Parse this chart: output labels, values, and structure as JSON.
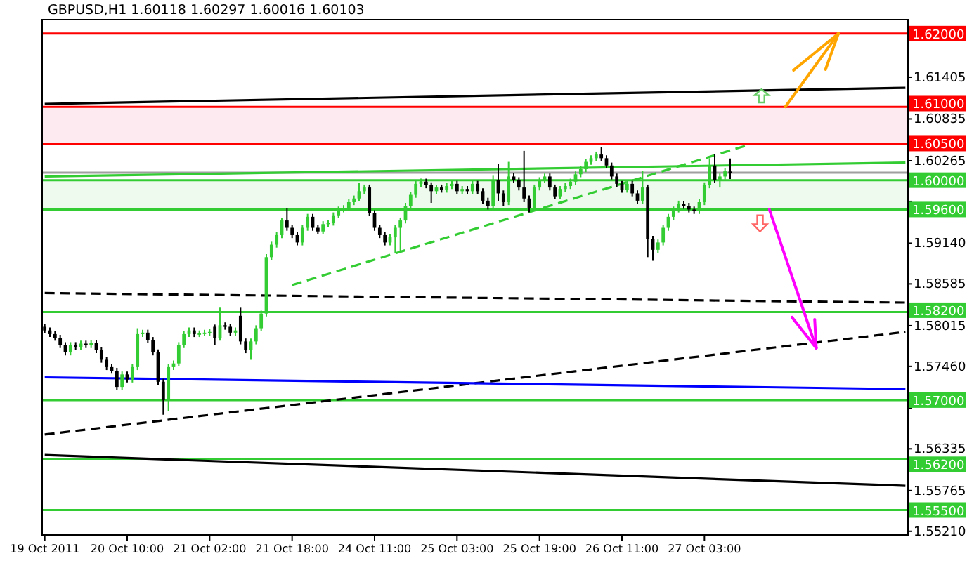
{
  "chart_data": {
    "type": "candlestick",
    "title": "GBPUSD,H1 1.60118 1.60297 1.60016 1.60103",
    "categories": [
      "19 Oct 2011",
      null,
      null,
      null,
      null,
      null,
      null,
      null,
      null,
      null,
      null,
      null,
      null,
      null,
      null,
      null,
      "20 Oct 10:00",
      null,
      null,
      null,
      null,
      null,
      null,
      null,
      null,
      null,
      null,
      null,
      null,
      null,
      null,
      null,
      "21 Oct 02:00",
      null,
      null,
      null,
      null,
      null,
      null,
      null,
      null,
      null,
      null,
      null,
      null,
      null,
      null,
      null,
      "21 Oct 18:00",
      null,
      null,
      null,
      null,
      null,
      null,
      null,
      null,
      null,
      null,
      null,
      null,
      null,
      null,
      null,
      "24 Oct 11:00",
      null,
      null,
      null,
      null,
      null,
      null,
      null,
      null,
      null,
      null,
      null,
      null,
      null,
      null,
      null,
      "25 Oct 03:00",
      null,
      null,
      null,
      null,
      null,
      null,
      null,
      null,
      null,
      null,
      null,
      null,
      null,
      null,
      null,
      "25 Oct 19:00",
      null,
      null,
      null,
      null,
      null,
      null,
      null,
      null,
      null,
      null,
      null,
      null,
      null,
      null,
      null,
      "26 Oct 11:00",
      null,
      null,
      null,
      null,
      null,
      null,
      null,
      null,
      null,
      null,
      null,
      null,
      null,
      null,
      null,
      "27 Oct 03:00",
      null,
      null,
      null,
      null,
      null,
      null,
      null,
      null,
      null,
      null,
      null,
      null,
      null,
      null,
      null,
      null,
      null,
      null,
      null,
      null,
      null,
      null,
      null,
      null,
      null,
      null,
      null,
      null,
      null,
      null,
      null,
      null,
      null,
      null,
      null,
      null,
      null,
      null,
      null
    ],
    "ohlc": [
      [
        1.58,
        1.5804,
        1.5791,
        1.5795
      ],
      [
        1.5795,
        1.5799,
        1.5786,
        1.579
      ],
      [
        1.579,
        1.5794,
        1.5781,
        1.5785
      ],
      [
        1.5785,
        1.5789,
        1.5771,
        1.5775
      ],
      [
        1.5775,
        1.5779,
        1.5761,
        1.5765
      ],
      [
        1.5765,
        1.5779,
        1.5761,
        1.5775
      ],
      [
        1.5775,
        1.5779,
        1.5768,
        1.5772
      ],
      [
        1.5772,
        1.5781,
        1.5768,
        1.5777
      ],
      [
        1.5777,
        1.5781,
        1.5771,
        1.5775
      ],
      [
        1.5775,
        1.5782,
        1.5771,
        1.5778
      ],
      [
        1.5778,
        1.5782,
        1.5764,
        1.5768
      ],
      [
        1.5768,
        1.5772,
        1.5751,
        1.5755
      ],
      [
        1.5755,
        1.5759,
        1.5741,
        1.5745
      ],
      [
        1.5745,
        1.5749,
        1.5736,
        1.574
      ],
      [
        1.574,
        1.5744,
        1.5714,
        1.5718
      ],
      [
        1.5718,
        1.5739,
        1.5714,
        1.5735
      ],
      [
        1.5735,
        1.5739,
        1.5724,
        1.5728
      ],
      [
        1.5728,
        1.5749,
        1.5724,
        1.5745
      ],
      [
        1.5745,
        1.5798,
        1.5741,
        1.579
      ],
      [
        1.579,
        1.5796,
        1.5786,
        1.5792
      ],
      [
        1.5792,
        1.5796,
        1.5778,
        1.5782
      ],
      [
        1.5782,
        1.5786,
        1.5761,
        1.5765
      ],
      [
        1.5765,
        1.5769,
        1.5721,
        1.5725
      ],
      [
        1.5725,
        1.5729,
        1.568,
        1.57
      ],
      [
        1.57,
        1.5749,
        1.5685,
        1.5745
      ],
      [
        1.5745,
        1.5754,
        1.5741,
        1.575
      ],
      [
        1.575,
        1.5779,
        1.5746,
        1.5775
      ],
      [
        1.5775,
        1.5794,
        1.5771,
        1.579
      ],
      [
        1.579,
        1.5799,
        1.5786,
        1.5795
      ],
      [
        1.5795,
        1.5799,
        1.5786,
        1.579
      ],
      [
        1.579,
        1.5795,
        1.5786,
        1.5791
      ],
      [
        1.5791,
        1.5796,
        1.5787,
        1.5792
      ],
      [
        1.5792,
        1.5797,
        1.5788,
        1.5793
      ],
      [
        1.58,
        1.5803,
        1.5775,
        1.5785
      ],
      [
        1.5785,
        1.5826,
        1.5781,
        1.5802
      ],
      [
        1.5802,
        1.5806,
        1.5796,
        1.58
      ],
      [
        1.58,
        1.5804,
        1.5788,
        1.5792
      ],
      [
        1.5792,
        1.5799,
        1.5788,
        1.5795
      ],
      [
        1.5815,
        1.5826,
        1.5776,
        1.578
      ],
      [
        1.578,
        1.5784,
        1.5764,
        1.5768
      ],
      [
        1.5768,
        1.5784,
        1.5755,
        1.578
      ],
      [
        1.578,
        1.5802,
        1.5776,
        1.5798
      ],
      [
        1.5798,
        1.5822,
        1.5794,
        1.5818
      ],
      [
        1.5818,
        1.5899,
        1.5814,
        1.5895
      ],
      [
        1.5895,
        1.5916,
        1.5891,
        1.5912
      ],
      [
        1.5912,
        1.5929,
        1.5908,
        1.5925
      ],
      [
        1.5925,
        1.5949,
        1.5921,
        1.5945
      ],
      [
        1.5945,
        1.5962,
        1.5931,
        1.5935
      ],
      [
        1.5935,
        1.5939,
        1.5921,
        1.5925
      ],
      [
        1.5925,
        1.5929,
        1.5911,
        1.5915
      ],
      [
        1.5915,
        1.5939,
        1.5911,
        1.5935
      ],
      [
        1.5935,
        1.5954,
        1.5931,
        1.595
      ],
      [
        1.595,
        1.5954,
        1.5931,
        1.5935
      ],
      [
        1.5935,
        1.5939,
        1.5926,
        1.593
      ],
      [
        1.593,
        1.5944,
        1.5926,
        1.594
      ],
      [
        1.594,
        1.5946,
        1.5936,
        1.5942
      ],
      [
        1.5942,
        1.5956,
        1.5938,
        1.5952
      ],
      [
        1.5952,
        1.5964,
        1.5948,
        1.596
      ],
      [
        1.596,
        1.5966,
        1.5956,
        1.5962
      ],
      [
        1.5962,
        1.5974,
        1.5958,
        1.597
      ],
      [
        1.597,
        1.5979,
        1.5966,
        1.5975
      ],
      [
        1.5975,
        1.5996,
        1.5971,
        1.5985
      ],
      [
        1.5985,
        1.5994,
        1.5981,
        1.599
      ],
      [
        1.599,
        1.5994,
        1.5951,
        1.5955
      ],
      [
        1.5955,
        1.5959,
        1.5931,
        1.5935
      ],
      [
        1.5935,
        1.5939,
        1.5921,
        1.5925
      ],
      [
        1.5925,
        1.5929,
        1.5911,
        1.5915
      ],
      [
        1.5915,
        1.5926,
        1.5911,
        1.5922
      ],
      [
        1.5922,
        1.5939,
        1.59,
        1.5935
      ],
      [
        1.5935,
        1.5949,
        1.5902,
        1.5945
      ],
      [
        1.5945,
        1.5969,
        1.5941,
        1.5965
      ],
      [
        1.5965,
        1.5984,
        1.5961,
        1.598
      ],
      [
        1.598,
        1.5999,
        1.5976,
        1.5995
      ],
      [
        1.5995,
        1.6002,
        1.5991,
        1.5998
      ],
      [
        1.5998,
        1.6002,
        1.5989,
        1.5993
      ],
      [
        1.5993,
        1.5997,
        1.5969,
        1.5985
      ],
      [
        1.5985,
        1.5994,
        1.5981,
        1.599
      ],
      [
        1.599,
        1.5994,
        1.5983,
        1.5987
      ],
      [
        1.5987,
        1.5996,
        1.5983,
        1.5992
      ],
      [
        1.5992,
        1.5999,
        1.5988,
        1.5995
      ],
      [
        1.5995,
        1.5999,
        1.5981,
        1.5985
      ],
      [
        1.5985,
        1.5992,
        1.5981,
        1.5988
      ],
      [
        1.5988,
        1.5992,
        1.5981,
        1.5985
      ],
      [
        1.5985,
        1.5999,
        1.5981,
        1.5995
      ],
      [
        1.5995,
        1.5999,
        1.5981,
        1.5985
      ],
      [
        1.5985,
        1.5989,
        1.5968,
        1.5972
      ],
      [
        1.5972,
        1.5976,
        1.596,
        1.5965
      ],
      [
        1.5965,
        1.6006,
        1.5961,
        1.6
      ],
      [
        1.6,
        1.6022,
        1.5972,
        1.5982
      ],
      [
        1.5982,
        1.5986,
        1.5965,
        1.597
      ],
      [
        1.597,
        1.6025,
        1.5966,
        1.6005
      ],
      [
        1.6005,
        1.601,
        1.5996,
        1.6
      ],
      [
        1.6,
        1.6004,
        1.5986,
        1.599
      ],
      [
        1.599,
        1.604,
        1.597,
        1.5975
      ],
      [
        1.5975,
        1.5979,
        1.5956,
        1.5962
      ],
      [
        1.5962,
        1.5994,
        1.5958,
        1.599
      ],
      [
        1.599,
        1.6004,
        1.5986,
        1.6
      ],
      [
        1.6,
        1.6009,
        1.5996,
        1.6005
      ],
      [
        1.6005,
        1.6009,
        1.5986,
        1.599
      ],
      [
        1.599,
        1.5994,
        1.5974,
        1.5978
      ],
      [
        1.5978,
        1.5992,
        1.5974,
        1.5988
      ],
      [
        1.5988,
        1.5996,
        1.5984,
        1.5992
      ],
      [
        1.5992,
        1.6002,
        1.5988,
        1.5998
      ],
      [
        1.5998,
        1.6012,
        1.5994,
        1.6008
      ],
      [
        1.6008,
        1.6019,
        1.6004,
        1.6015
      ],
      [
        1.6015,
        1.6029,
        1.6011,
        1.6025
      ],
      [
        1.6025,
        1.6034,
        1.6021,
        1.603
      ],
      [
        1.603,
        1.6039,
        1.6026,
        1.6035
      ],
      [
        1.6035,
        1.6045,
        1.6026,
        1.603
      ],
      [
        1.603,
        1.6034,
        1.6016,
        1.602
      ],
      [
        1.602,
        1.6024,
        1.6001,
        1.6005
      ],
      [
        1.6005,
        1.6009,
        1.5991,
        1.5995
      ],
      [
        1.5995,
        1.5999,
        1.5983,
        1.5987
      ],
      [
        1.5987,
        1.5999,
        1.5983,
        1.5995
      ],
      [
        1.5995,
        1.5999,
        1.5978,
        1.5982
      ],
      [
        1.5982,
        1.5986,
        1.5968,
        1.5972
      ],
      [
        1.5972,
        1.6013,
        1.5968,
        1.599
      ],
      [
        1.599,
        1.5994,
        1.5895,
        1.592
      ],
      [
        1.592,
        1.5924,
        1.589,
        1.5905
      ],
      [
        1.5905,
        1.5919,
        1.5901,
        1.5915
      ],
      [
        1.5915,
        1.5939,
        1.5911,
        1.5935
      ],
      [
        1.5935,
        1.5954,
        1.5931,
        1.595
      ],
      [
        1.595,
        1.5964,
        1.5946,
        1.596
      ],
      [
        1.596,
        1.5972,
        1.5956,
        1.5968
      ],
      [
        1.5968,
        1.5972,
        1.5961,
        1.5965
      ],
      [
        1.5965,
        1.5969,
        1.5956,
        1.596
      ],
      [
        1.596,
        1.5964,
        1.5954,
        1.5958
      ],
      [
        1.5958,
        1.5974,
        1.5954,
        1.597
      ],
      [
        1.597,
        1.5997,
        1.5966,
        1.5993
      ],
      [
        1.5993,
        1.603,
        1.5989,
        1.602
      ],
      [
        1.602,
        1.6036,
        1.5996,
        1.6
      ],
      [
        1.6,
        1.6009,
        1.599,
        1.6005
      ],
      [
        1.6005,
        1.6016,
        1.6001,
        1.6012
      ],
      [
        1.60118,
        1.60297,
        1.60016,
        1.60103
      ],
      null,
      null,
      null,
      null,
      null,
      null,
      null,
      null,
      null,
      null,
      null,
      null,
      null,
      null,
      null,
      null,
      null,
      null,
      null,
      null,
      null,
      null,
      null,
      null,
      null,
      null,
      null,
      null,
      null,
      null,
      null,
      null,
      null,
      null
    ],
    "ylim": [
      1.5516,
      1.6219
    ],
    "yticks": [
      1.61405,
      1.60835,
      1.60265,
      {
        "value": 1.5971,
        "label": null
      },
      {
        "value": 1.5914,
        "label": "1.59140"
      },
      1.58585,
      1.58015,
      {
        "value": 1.5746,
        "label": "1.57460"
      },
      {
        "value": 1.5689,
        "label": null
      },
      1.56335,
      1.55765,
      {
        "value": 1.5521,
        "label": "1.55210"
      }
    ],
    "series": [
      {
        "type": "line",
        "color": "#000000",
        "line_style": "solid",
        "values": [
          1.6104,
          null,
          null,
          null,
          null,
          null,
          null,
          null,
          null,
          null,
          null,
          null,
          null,
          null,
          null,
          null,
          null,
          null,
          null,
          null,
          null,
          null,
          null,
          null,
          null,
          null,
          null,
          null,
          null,
          null,
          null,
          null,
          null,
          null,
          null,
          null,
          null,
          null,
          null,
          null,
          null,
          null,
          null,
          null,
          null,
          null,
          null,
          null,
          null,
          null,
          null,
          null,
          null,
          null,
          null,
          null,
          null,
          null,
          null,
          null,
          null,
          null,
          null,
          null,
          null,
          null,
          null,
          null,
          null,
          null,
          null,
          null,
          null,
          null,
          null,
          null,
          null,
          null,
          null,
          null,
          null,
          null,
          null,
          null,
          null,
          null,
          null,
          null,
          null,
          null,
          null,
          null,
          null,
          null,
          null,
          null,
          null,
          null,
          null,
          null,
          null,
          null,
          null,
          null,
          null,
          null,
          null,
          null,
          null,
          null,
          null,
          null,
          null,
          null,
          null,
          null,
          null,
          null,
          null,
          null,
          null,
          null,
          null,
          null,
          null,
          null,
          null,
          null,
          null,
          null,
          null,
          null,
          null,
          null,
          null,
          null,
          null,
          null,
          null,
          null,
          null,
          null,
          null,
          null,
          null,
          null,
          null,
          null,
          null,
          null,
          null,
          null,
          null,
          null,
          null,
          null,
          null,
          null,
          null,
          null,
          null,
          null,
          null,
          null,
          null,
          null,
          null,
          1.6126
        ]
      },
      {
        "type": "line",
        "color": "#33cc33",
        "line_style": "solid",
        "values": [
          1.6005,
          null,
          null,
          null,
          null,
          null,
          null,
          null,
          null,
          null,
          null,
          null,
          null,
          null,
          null,
          null,
          null,
          null,
          null,
          null,
          null,
          null,
          null,
          null,
          null,
          null,
          null,
          null,
          null,
          null,
          null,
          null,
          null,
          null,
          null,
          null,
          null,
          null,
          null,
          null,
          null,
          null,
          null,
          null,
          null,
          null,
          null,
          null,
          null,
          null,
          null,
          null,
          null,
          null,
          null,
          null,
          null,
          null,
          null,
          null,
          null,
          null,
          null,
          null,
          null,
          null,
          null,
          null,
          null,
          null,
          null,
          null,
          null,
          null,
          null,
          null,
          null,
          null,
          null,
          null,
          null,
          null,
          null,
          null,
          null,
          null,
          null,
          null,
          null,
          null,
          null,
          null,
          null,
          null,
          null,
          null,
          null,
          null,
          null,
          null,
          null,
          null,
          null,
          null,
          null,
          null,
          null,
          null,
          null,
          null,
          null,
          null,
          null,
          null,
          null,
          null,
          null,
          null,
          null,
          null,
          null,
          null,
          null,
          null,
          null,
          null,
          null,
          null,
          null,
          null,
          null,
          null,
          null,
          null,
          null,
          null,
          null,
          null,
          null,
          null,
          null,
          null,
          null,
          null,
          null,
          null,
          null,
          null,
          null,
          null,
          null,
          null,
          null,
          null,
          null,
          null,
          null,
          null,
          null,
          null,
          null,
          null,
          null,
          null,
          null,
          null,
          null,
          1.6024
        ]
      },
      {
        "type": "line",
        "color": "#33cc33",
        "line_style": "dashed",
        "values": [
          null,
          null,
          null,
          null,
          null,
          null,
          null,
          null,
          null,
          null,
          null,
          null,
          null,
          null,
          null,
          null,
          null,
          null,
          null,
          null,
          null,
          null,
          null,
          null,
          null,
          null,
          null,
          null,
          null,
          null,
          null,
          null,
          null,
          null,
          null,
          null,
          null,
          null,
          null,
          null,
          null,
          null,
          null,
          null,
          null,
          null,
          null,
          null,
          1.5857,
          null,
          null,
          null,
          null,
          null,
          null,
          null,
          null,
          null,
          null,
          null,
          null,
          null,
          null,
          null,
          null,
          null,
          null,
          null,
          null,
          null,
          null,
          null,
          null,
          null,
          null,
          null,
          null,
          null,
          null,
          null,
          null,
          null,
          null,
          null,
          null,
          null,
          null,
          null,
          null,
          null,
          null,
          null,
          null,
          null,
          null,
          null,
          null,
          null,
          null,
          null,
          null,
          null,
          null,
          null,
          null,
          null,
          null,
          null,
          null,
          null,
          null,
          null,
          null,
          null,
          null,
          null,
          null,
          null,
          null,
          null,
          null,
          null,
          null,
          null,
          null,
          null,
          null,
          null,
          null,
          null,
          null,
          null,
          null,
          null,
          null,
          null,
          1.6047,
          null,
          null,
          null,
          null,
          null,
          null,
          null,
          null,
          null,
          null,
          null,
          null,
          null,
          null,
          null,
          null,
          null,
          null,
          null,
          null,
          null,
          null,
          null,
          null,
          null,
          null,
          null,
          null,
          null,
          null,
          null
        ]
      },
      {
        "type": "line",
        "color": "#000000",
        "line_style": "dashed",
        "values": [
          1.5846,
          null,
          null,
          null,
          null,
          null,
          null,
          null,
          null,
          null,
          null,
          null,
          null,
          null,
          null,
          null,
          null,
          null,
          null,
          null,
          null,
          null,
          null,
          null,
          null,
          null,
          null,
          null,
          null,
          null,
          null,
          null,
          null,
          null,
          null,
          null,
          null,
          null,
          null,
          null,
          null,
          null,
          null,
          null,
          null,
          null,
          null,
          null,
          null,
          null,
          null,
          null,
          null,
          null,
          null,
          null,
          null,
          null,
          null,
          null,
          null,
          null,
          null,
          null,
          null,
          null,
          null,
          null,
          null,
          null,
          null,
          null,
          null,
          null,
          null,
          null,
          null,
          null,
          null,
          null,
          null,
          null,
          null,
          null,
          null,
          null,
          null,
          null,
          null,
          null,
          null,
          null,
          null,
          null,
          null,
          null,
          null,
          null,
          null,
          null,
          null,
          null,
          null,
          null,
          null,
          null,
          null,
          null,
          null,
          null,
          null,
          null,
          null,
          null,
          null,
          null,
          null,
          null,
          null,
          null,
          null,
          null,
          null,
          null,
          null,
          null,
          null,
          null,
          null,
          null,
          null,
          null,
          null,
          null,
          null,
          null,
          null,
          null,
          null,
          null,
          null,
          null,
          null,
          null,
          null,
          null,
          null,
          null,
          null,
          null,
          null,
          null,
          null,
          null,
          null,
          null,
          null,
          null,
          null,
          null,
          null,
          null,
          null,
          null,
          null,
          null,
          null,
          1.5833
        ]
      },
      {
        "type": "line",
        "color": "#000000",
        "line_style": "dashed",
        "values": [
          1.5653,
          null,
          null,
          null,
          null,
          null,
          null,
          null,
          null,
          null,
          null,
          null,
          null,
          null,
          null,
          null,
          null,
          null,
          null,
          null,
          null,
          null,
          null,
          null,
          null,
          null,
          null,
          null,
          null,
          null,
          null,
          null,
          null,
          null,
          null,
          null,
          null,
          null,
          null,
          null,
          null,
          null,
          null,
          null,
          null,
          null,
          null,
          null,
          null,
          null,
          null,
          null,
          null,
          null,
          null,
          null,
          null,
          null,
          null,
          null,
          null,
          null,
          null,
          null,
          null,
          null,
          null,
          null,
          null,
          null,
          null,
          null,
          null,
          null,
          null,
          null,
          null,
          null,
          null,
          null,
          null,
          null,
          null,
          null,
          null,
          null,
          null,
          null,
          null,
          null,
          null,
          null,
          null,
          null,
          null,
          null,
          null,
          null,
          null,
          null,
          null,
          null,
          null,
          null,
          null,
          null,
          null,
          null,
          null,
          null,
          null,
          null,
          null,
          null,
          null,
          null,
          null,
          null,
          null,
          null,
          null,
          null,
          null,
          null,
          null,
          null,
          null,
          null,
          null,
          null,
          null,
          null,
          null,
          null,
          null,
          null,
          null,
          null,
          null,
          null,
          null,
          null,
          null,
          null,
          null,
          null,
          null,
          null,
          null,
          null,
          null,
          null,
          null,
          null,
          null,
          null,
          null,
          null,
          null,
          null,
          null,
          null,
          null,
          null,
          null,
          null,
          null,
          1.5793
        ]
      },
      {
        "type": "line",
        "color": "#000000",
        "line_style": "solid",
        "values": [
          1.5625,
          null,
          null,
          null,
          null,
          null,
          null,
          null,
          null,
          null,
          null,
          null,
          null,
          null,
          null,
          null,
          null,
          null,
          null,
          null,
          null,
          null,
          null,
          null,
          null,
          null,
          null,
          null,
          null,
          null,
          null,
          null,
          null,
          null,
          null,
          null,
          null,
          null,
          null,
          null,
          null,
          null,
          null,
          null,
          null,
          null,
          null,
          null,
          null,
          null,
          null,
          null,
          null,
          null,
          null,
          null,
          null,
          null,
          null,
          null,
          null,
          null,
          null,
          null,
          null,
          null,
          null,
          null,
          null,
          null,
          null,
          null,
          null,
          null,
          null,
          null,
          null,
          null,
          null,
          null,
          null,
          null,
          null,
          null,
          null,
          null,
          null,
          null,
          null,
          null,
          null,
          null,
          null,
          null,
          null,
          null,
          null,
          null,
          null,
          null,
          null,
          null,
          null,
          null,
          null,
          null,
          null,
          null,
          null,
          null,
          null,
          null,
          null,
          null,
          null,
          null,
          null,
          null,
          null,
          null,
          null,
          null,
          null,
          null,
          null,
          null,
          null,
          null,
          null,
          null,
          null,
          null,
          null,
          null,
          null,
          null,
          null,
          null,
          null,
          null,
          null,
          null,
          null,
          null,
          null,
          null,
          null,
          null,
          null,
          null,
          null,
          null,
          null,
          null,
          null,
          null,
          null,
          null,
          null,
          null,
          null,
          null,
          null,
          null,
          null,
          null,
          null,
          1.5583
        ]
      },
      {
        "type": "line",
        "color": "#0000ff",
        "line_style": "solid",
        "values": [
          1.5731,
          null,
          null,
          null,
          null,
          null,
          null,
          null,
          null,
          null,
          null,
          null,
          null,
          null,
          null,
          null,
          null,
          null,
          null,
          null,
          null,
          null,
          null,
          null,
          null,
          null,
          null,
          null,
          null,
          null,
          null,
          null,
          null,
          null,
          null,
          null,
          null,
          null,
          null,
          null,
          null,
          null,
          null,
          null,
          null,
          null,
          null,
          null,
          null,
          null,
          null,
          null,
          null,
          null,
          null,
          null,
          null,
          null,
          null,
          null,
          null,
          null,
          null,
          null,
          null,
          null,
          null,
          null,
          null,
          null,
          null,
          null,
          null,
          null,
          null,
          null,
          null,
          null,
          null,
          null,
          null,
          null,
          null,
          null,
          null,
          null,
          null,
          null,
          null,
          null,
          null,
          null,
          null,
          null,
          null,
          null,
          null,
          null,
          null,
          null,
          null,
          null,
          null,
          null,
          null,
          null,
          null,
          null,
          null,
          null,
          null,
          null,
          null,
          null,
          null,
          null,
          null,
          null,
          null,
          null,
          null,
          null,
          null,
          null,
          null,
          null,
          null,
          null,
          null,
          null,
          null,
          null,
          null,
          null,
          null,
          null,
          null,
          null,
          null,
          null,
          null,
          null,
          null,
          null,
          null,
          null,
          null,
          null,
          null,
          null,
          null,
          null,
          null,
          null,
          null,
          null,
          null,
          null,
          null,
          null,
          null,
          null,
          null,
          null,
          null,
          null,
          null,
          1.5715
        ]
      }
    ],
    "bands": [
      {
        "axis": "y",
        "from": 1.605,
        "to": 1.61,
        "color": "#fdeaf0"
      },
      {
        "axis": "y",
        "from": 1.596,
        "to": 1.6,
        "color": "#eefaee"
      }
    ],
    "ref_lines": [
      {
        "axis": "y",
        "value": 1.62,
        "label": "1.62000",
        "color": "#ff0000"
      },
      {
        "axis": "y",
        "value": 1.61,
        "label": "1.61000",
        "color": "#ff0000"
      },
      {
        "axis": "y",
        "value": 1.605,
        "label": "1.60500",
        "color": "#ff0000"
      },
      {
        "axis": "y",
        "value": 1.60103,
        "label": null,
        "color": "#a0a0a0"
      },
      {
        "axis": "y",
        "value": 1.6,
        "label": "1.60000",
        "color": "#33cc33"
      },
      {
        "axis": "y",
        "value": 1.596,
        "label": "1.59600",
        "color": "#33cc33"
      },
      {
        "axis": "y",
        "value": 1.582,
        "label": "1.58200",
        "color": "#33cc33"
      },
      {
        "axis": "y",
        "value": 1.57,
        "label": "1.57000",
        "color": "#33cc33"
      },
      {
        "axis": "y",
        "value": 1.562,
        "label": "1.56200",
        "color": "#33cc33"
      },
      {
        "axis": "y",
        "value": 1.555,
        "label": "1.55500",
        "color": "#33cc33"
      }
    ]
  }
}
